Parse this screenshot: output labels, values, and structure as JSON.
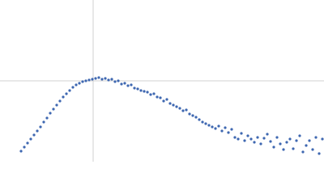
{
  "chart_data": {
    "type": "scatter",
    "color": "#3e67b1",
    "xlim": [
      0,
      400
    ],
    "ylim": [
      0,
      200
    ],
    "x": [
      26,
      30,
      34,
      38,
      42,
      46,
      50,
      54,
      58,
      62,
      66,
      70,
      74,
      78,
      82,
      86,
      90,
      94,
      98,
      102,
      106,
      110,
      114,
      118,
      122,
      126,
      130,
      134,
      138,
      142,
      146,
      150,
      154,
      158,
      162,
      166,
      170,
      174,
      178,
      182,
      186,
      190,
      194,
      198,
      202,
      206,
      210,
      214,
      218,
      222,
      226,
      230,
      234,
      238,
      242,
      246,
      250,
      254,
      258,
      262,
      266,
      270,
      274,
      278,
      282,
      286,
      290,
      294,
      298,
      302,
      306,
      310,
      314,
      318,
      322,
      326,
      330,
      334,
      338,
      342,
      346,
      350,
      354,
      358,
      362,
      366,
      370,
      374,
      378,
      382,
      386,
      390,
      394,
      398
    ],
    "y": [
      13,
      18,
      23,
      28,
      33,
      38,
      43,
      49,
      54,
      60,
      65,
      70,
      75,
      80,
      84,
      88,
      92,
      95,
      97,
      99,
      100,
      101,
      102,
      103,
      104,
      102,
      103,
      101,
      102,
      99,
      100,
      96,
      97,
      94,
      95,
      91,
      90,
      88,
      87,
      86,
      83,
      84,
      80,
      79,
      75,
      77,
      72,
      70,
      68,
      66,
      63,
      64,
      59,
      57,
      55,
      52,
      49,
      47,
      45,
      43,
      41,
      44,
      38,
      42,
      36,
      40,
      30,
      28,
      35,
      26,
      32,
      28,
      24,
      30,
      22,
      29,
      34,
      25,
      18,
      30,
      22,
      15,
      24,
      28,
      16,
      26,
      32,
      12,
      20,
      26,
      15,
      30,
      10,
      28
    ]
  }
}
